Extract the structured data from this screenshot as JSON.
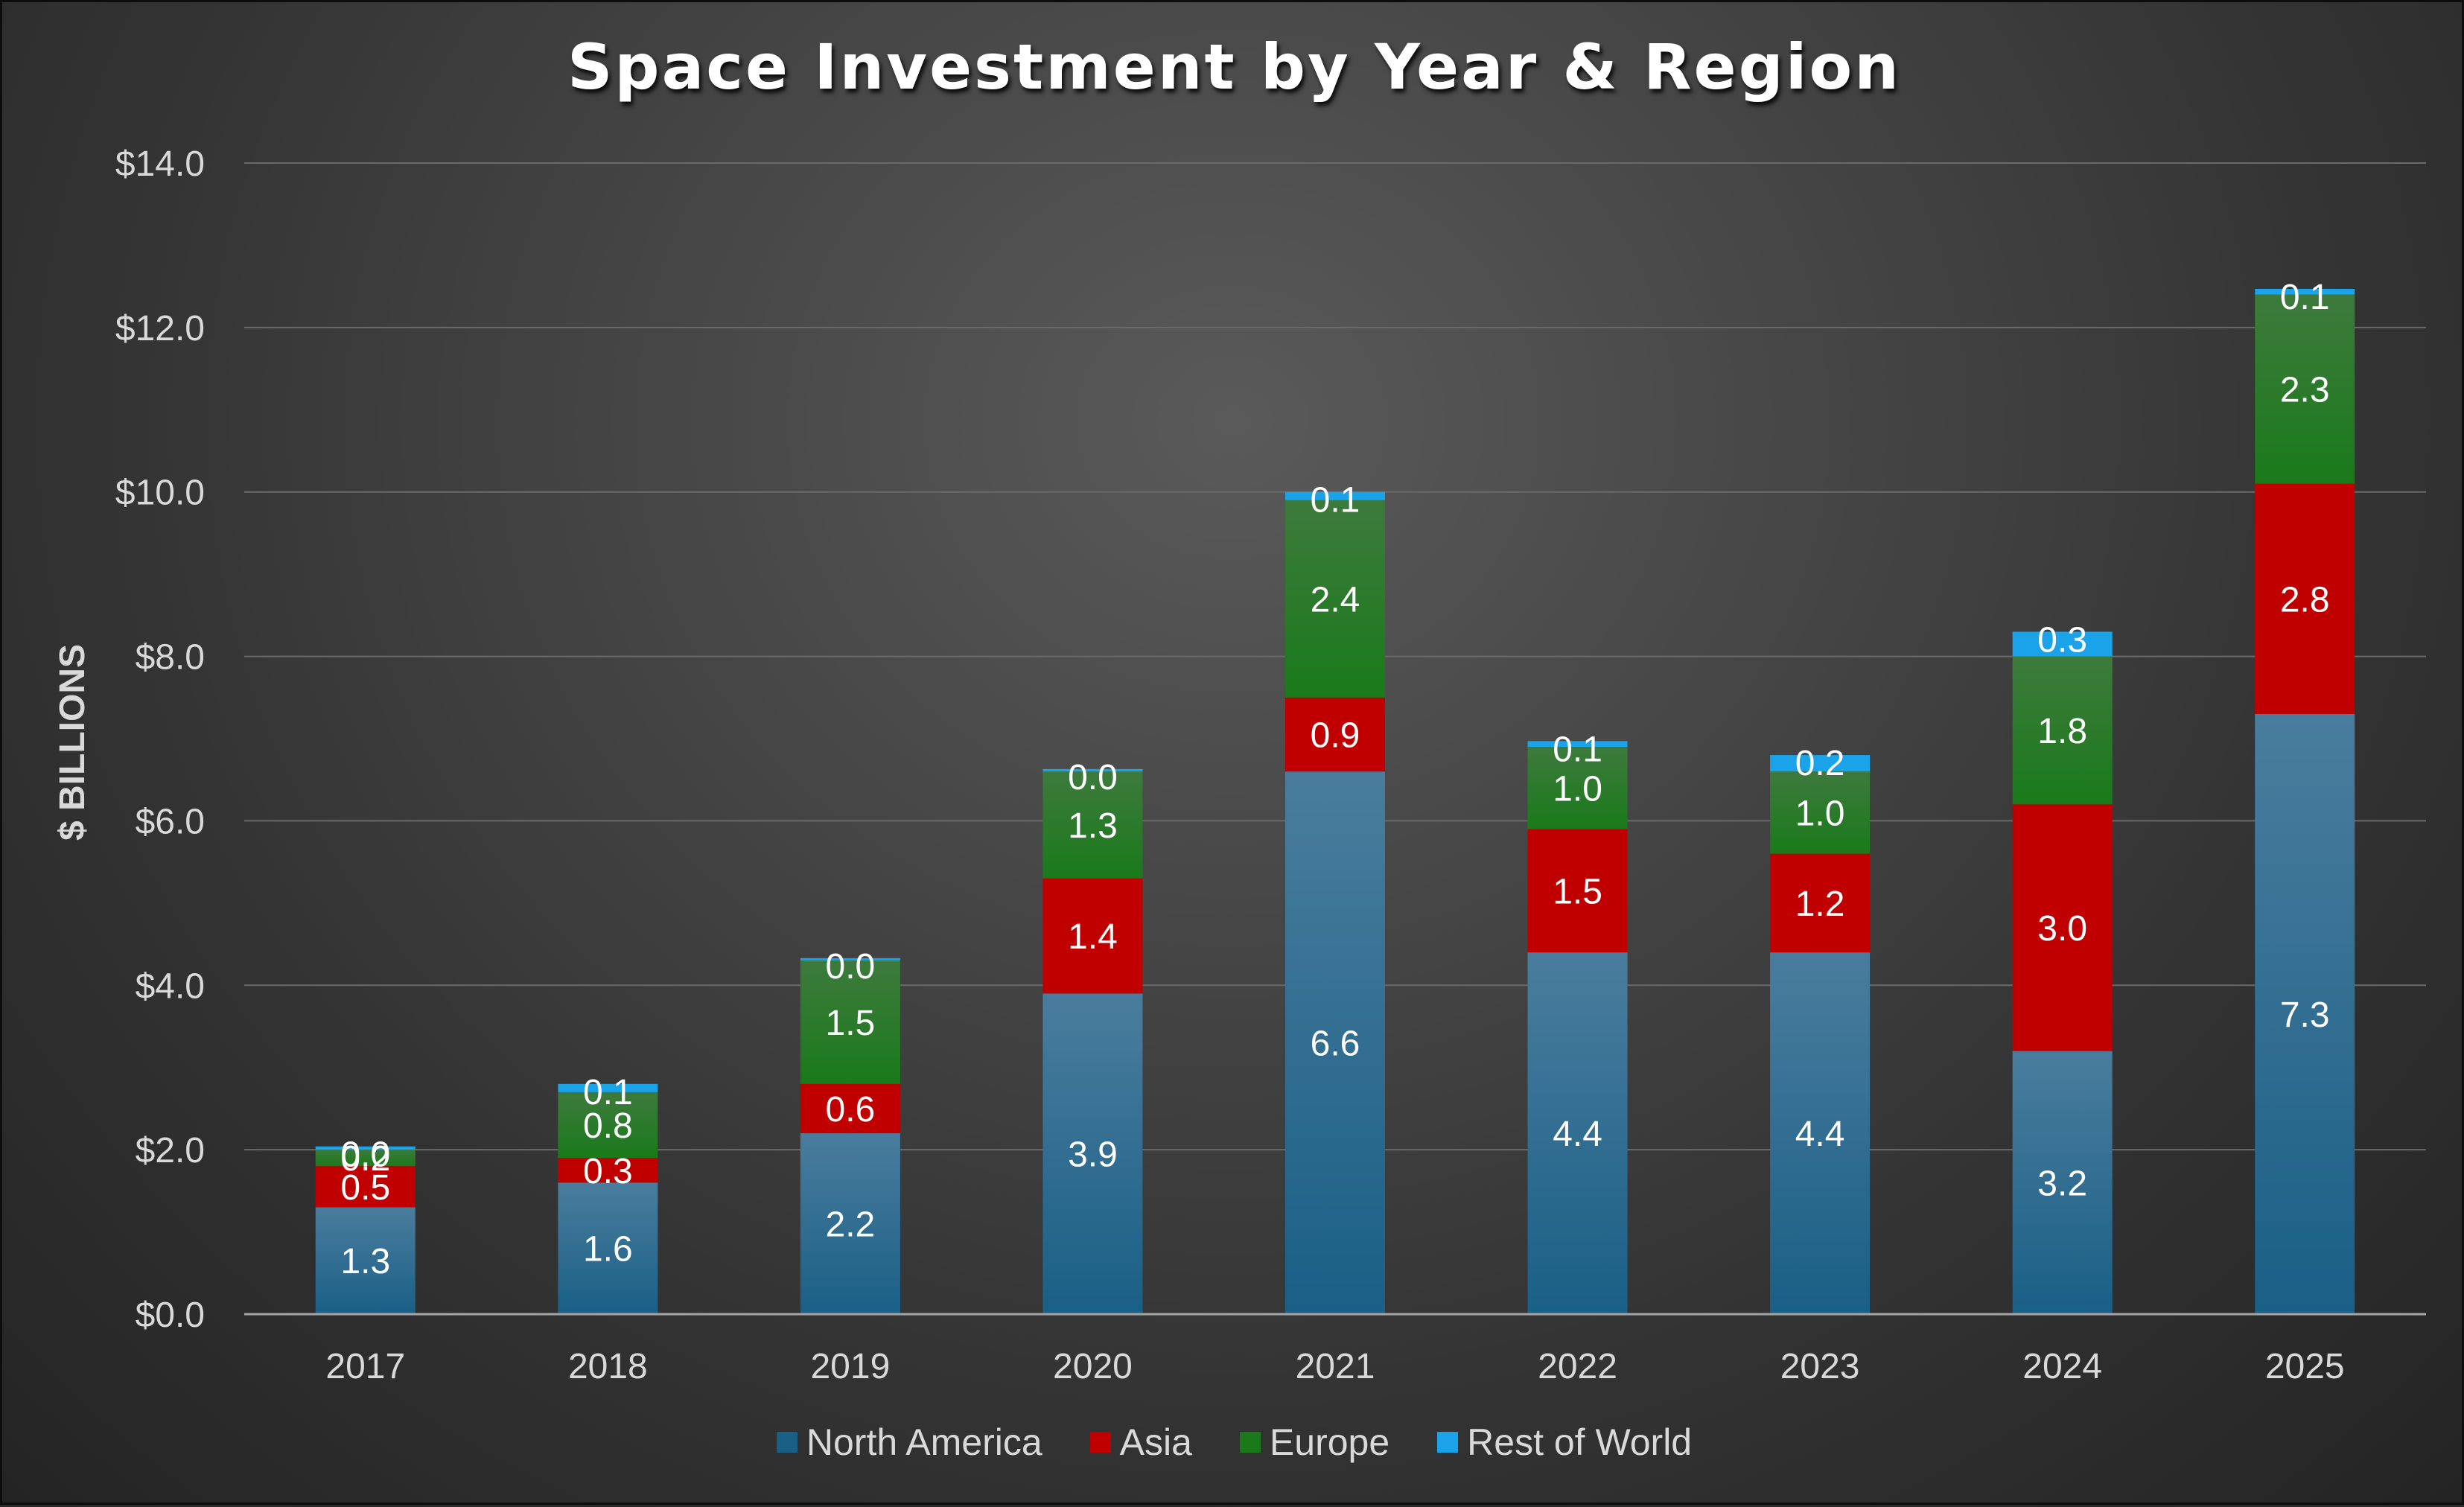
{
  "chart_data": {
    "type": "bar",
    "stacked": true,
    "title": "Space Investment by Year & Region",
    "xlabel": "",
    "ylabel": "$ BILLIONS",
    "ylim": [
      0,
      14
    ],
    "ytick_values": [
      0,
      2,
      4,
      6,
      8,
      10,
      12,
      14
    ],
    "ytick_labels": [
      "$0.0",
      "$2.0",
      "$4.0",
      "$6.0",
      "$8.0",
      "$10.0",
      "$12.0",
      "$14.0"
    ],
    "grid": true,
    "legend_position": "bottom-center",
    "categories": [
      "2017",
      "2018",
      "2019",
      "2020",
      "2021",
      "2022",
      "2023",
      "2024",
      "2025"
    ],
    "series": [
      {
        "name": "North America",
        "color": "#1a5f86",
        "color_light": "#4a7d9d",
        "values": [
          1.3,
          1.6,
          2.2,
          3.9,
          6.6,
          4.4,
          4.4,
          3.2,
          7.3
        ],
        "labels": [
          "1.3",
          "1.6",
          "2.2",
          "3.9",
          "6.6",
          "4.4",
          "4.4",
          "3.2",
          "7.3"
        ]
      },
      {
        "name": "Asia",
        "color": "#c00000",
        "color_light": "#c00000",
        "values": [
          0.5,
          0.3,
          0.6,
          1.4,
          0.9,
          1.5,
          1.2,
          3.0,
          2.8
        ],
        "labels": [
          "0.5",
          "0.3",
          "0.6",
          "1.4",
          "0.9",
          "1.5",
          "1.2",
          "3.0",
          "2.8"
        ]
      },
      {
        "name": "Europe",
        "color": "#1a7a1a",
        "color_light": "#3d7a3d",
        "values": [
          0.2,
          0.8,
          1.5,
          1.3,
          2.4,
          1.0,
          1.0,
          1.8,
          2.3
        ],
        "labels": [
          "0.2",
          "0.8",
          "1.5",
          "1.3",
          "2.4",
          "1.0",
          "1.0",
          "1.8",
          "2.3"
        ]
      },
      {
        "name": "Rest of World",
        "color": "#1aa3e8",
        "color_light": "#1aa3e8",
        "values": [
          0.04,
          0.1,
          0.03,
          0.03,
          0.1,
          0.07,
          0.2,
          0.3,
          0.07
        ],
        "labels": [
          "0.0",
          "0.1",
          "0.0",
          "0.0",
          "0.1",
          "0.1",
          "0.2",
          "0.3",
          "0.1"
        ]
      }
    ]
  }
}
